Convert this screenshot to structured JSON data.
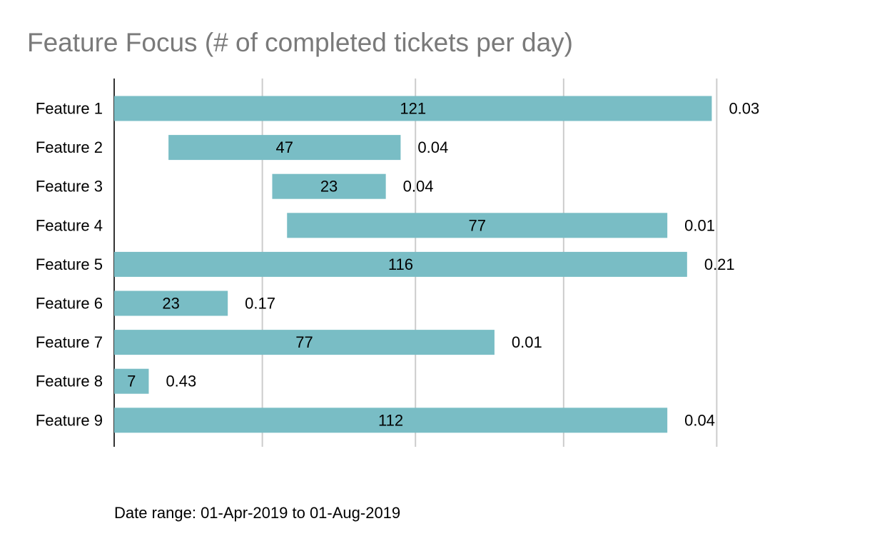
{
  "chart_data": {
    "type": "bar",
    "orientation": "horizontal",
    "title": "Feature Focus (# of completed tickets per day)",
    "categories": [
      "Feature 1",
      "Feature 2",
      "Feature 3",
      "Feature 4",
      "Feature 5",
      "Feature 6",
      "Feature 7",
      "Feature 8",
      "Feature 9"
    ],
    "series": [
      {
        "color": "#79bdc5",
        "start_date": [
          "2019-04-01",
          "2019-04-12",
          "2019-05-03",
          "2019-05-06",
          "2019-04-01",
          "2019-04-01",
          "2019-04-01",
          "2019-04-01",
          "2019-04-01"
        ],
        "end_date": [
          "2019-07-31",
          "2019-05-29",
          "2019-05-26",
          "2019-07-22",
          "2019-07-26",
          "2019-04-24",
          "2019-06-17",
          "2019-04-08",
          "2019-07-22"
        ],
        "values": [
          121,
          47,
          23,
          77,
          116,
          23,
          77,
          7,
          112
        ],
        "rates": [
          0.03,
          0.04,
          0.04,
          0.01,
          0.21,
          0.17,
          0.01,
          0.43,
          0.04
        ],
        "value_labels": [
          "121",
          "47",
          "23",
          "77",
          "116",
          "23",
          "77",
          "7",
          "112"
        ],
        "rate_labels": [
          "0.03",
          "0.04",
          "0.04",
          "0.01",
          "0.21",
          "0.17",
          "0.01",
          "0.43",
          "0.04"
        ]
      }
    ],
    "xlim": [
      "2019-04-01",
      "2019-08-31"
    ],
    "x_gridlines": [
      "2019-05-01",
      "2019-06-01",
      "2019-07-01",
      "2019-08-01"
    ],
    "x_tick_labels_shown": false,
    "grid": true,
    "legend": "none",
    "footnote": "Date range: 01-Apr-2019 to 01-Aug-2019"
  }
}
